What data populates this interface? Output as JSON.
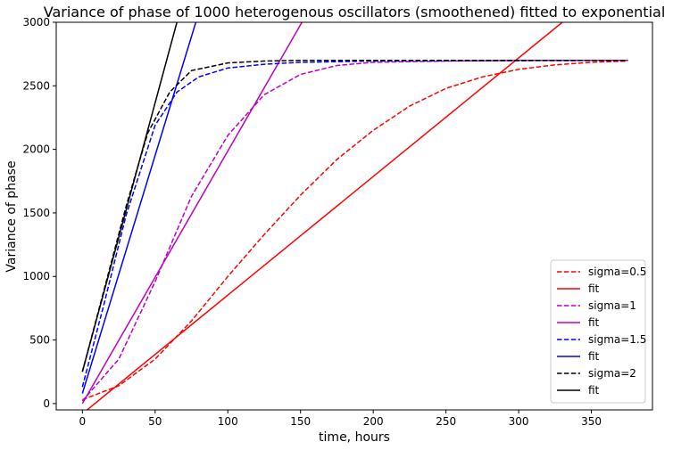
{
  "chart_data": {
    "type": "line",
    "title": "Variance of phase of 1000 heterogenous oscillators (smoothened) fitted to exponential",
    "xlabel": "time, hours",
    "ylabel": "Variance of phase",
    "xlim": [
      -18,
      392
    ],
    "ylim": [
      -50,
      3000
    ],
    "xticks": [
      0,
      50,
      100,
      150,
      200,
      250,
      300,
      350
    ],
    "yticks": [
      0,
      500,
      1000,
      1500,
      2000,
      2500,
      3000
    ],
    "grid": false,
    "legend_position": "lower right",
    "series": [
      {
        "name": "sigma=0.5",
        "color": "#ff0000",
        "style": "dashed",
        "x": [
          0,
          25,
          50,
          75,
          100,
          125,
          150,
          175,
          200,
          225,
          250,
          275,
          300,
          325,
          350,
          375
        ],
        "y": [
          30,
          140,
          350,
          650,
          1000,
          1330,
          1640,
          1920,
          2150,
          2340,
          2480,
          2570,
          2630,
          2665,
          2685,
          2695
        ]
      },
      {
        "name": "fit",
        "color": "#ff0000",
        "style": "solid",
        "x": [
          0,
          330
        ],
        "y": [
          -80,
          3000
        ]
      },
      {
        "name": "sigma=1",
        "color": "#bf00bf",
        "style": "dashed",
        "x": [
          0,
          25,
          50,
          75,
          100,
          125,
          150,
          175,
          200,
          250,
          300,
          375
        ],
        "y": [
          20,
          350,
          960,
          1630,
          2110,
          2430,
          2590,
          2660,
          2685,
          2695,
          2700,
          2700
        ]
      },
      {
        "name": "fit",
        "color": "#bf00bf",
        "style": "solid",
        "x": [
          0,
          151
        ],
        "y": [
          0,
          3000
        ]
      },
      {
        "name": "sigma=1.5",
        "color": "#0000ff",
        "style": "dashed",
        "x": [
          0,
          15,
          30,
          50,
          65,
          80,
          100,
          125,
          150,
          200,
          375
        ],
        "y": [
          130,
          790,
          1480,
          2190,
          2450,
          2570,
          2640,
          2670,
          2685,
          2695,
          2700
        ]
      },
      {
        "name": "fit",
        "color": "#0000ff",
        "style": "solid",
        "x": [
          0,
          78
        ],
        "y": [
          80,
          3000
        ]
      },
      {
        "name": "sigma=2",
        "color": "#000000",
        "style": "dashed",
        "x": [
          0,
          15,
          30,
          45,
          60,
          75,
          100,
          125,
          150,
          200,
          375
        ],
        "y": [
          250,
          900,
          1550,
          2130,
          2450,
          2620,
          2680,
          2695,
          2700,
          2700,
          2700
        ]
      },
      {
        "name": "fit",
        "color": "#000000",
        "style": "solid",
        "x": [
          0,
          65
        ],
        "y": [
          250,
          3000
        ]
      }
    ]
  }
}
